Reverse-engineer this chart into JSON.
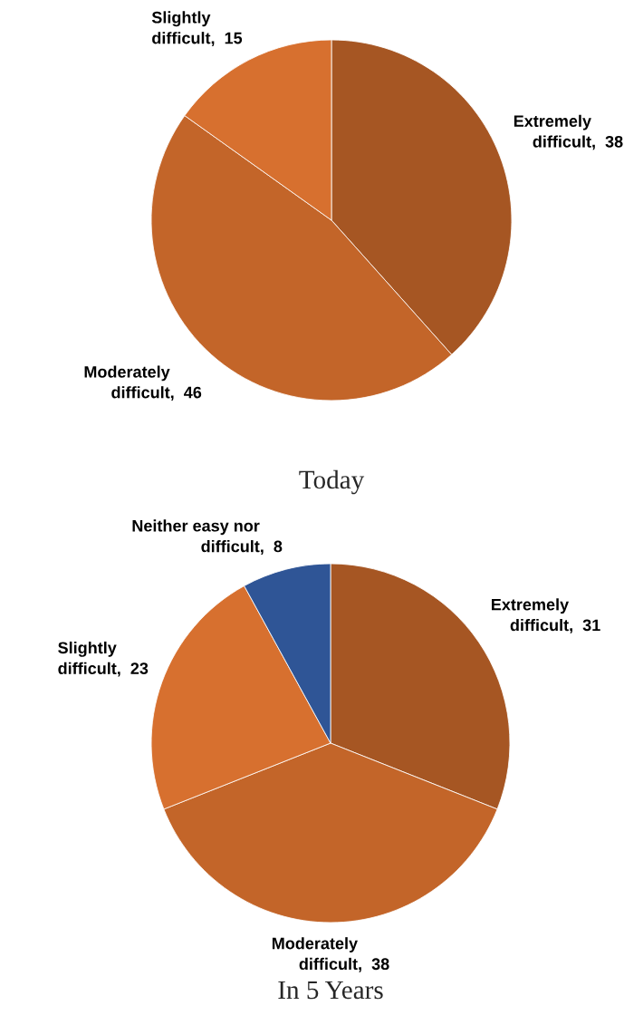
{
  "chart_data": [
    {
      "type": "pie",
      "title": "Today",
      "categories": [
        "Extremely difficult",
        "Moderately difficult",
        "Slightly difficult"
      ],
      "values": [
        38,
        46,
        15
      ],
      "value_labels": [
        ",  38",
        ",  46",
        ",  15"
      ],
      "colors": [
        "#a65623",
        "#c36529",
        "#d7702f"
      ]
    },
    {
      "type": "pie",
      "title": "In 5 Years",
      "categories": [
        "Extremely difficult",
        "Moderately difficult",
        "Slightly difficult",
        "Neither easy nor difficult"
      ],
      "values": [
        31,
        38,
        23,
        8
      ],
      "value_labels": [
        ",  31",
        ",  38",
        ",  23",
        ",  8"
      ],
      "colors": [
        "#a65623",
        "#c36529",
        "#d7702f",
        "#2f5596"
      ]
    }
  ]
}
